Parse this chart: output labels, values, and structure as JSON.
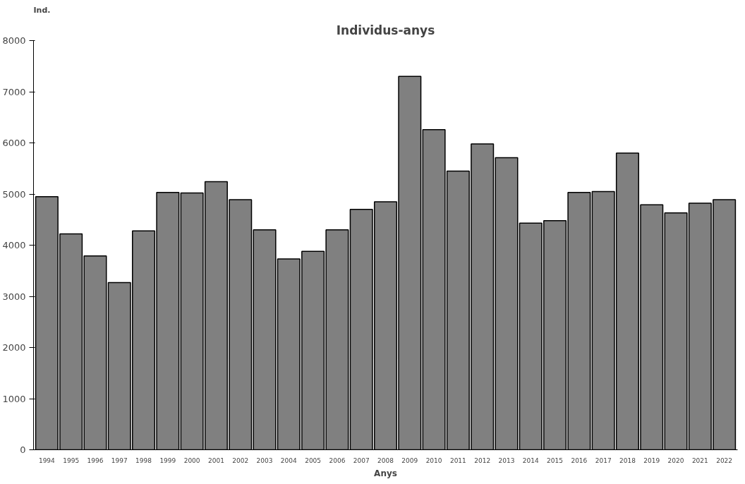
{
  "chart_data": {
    "type": "bar",
    "title": "Individus-anys",
    "xlabel": "Anys",
    "ylabel": "Ind.",
    "categories": [
      "1994",
      "1995",
      "1996",
      "1997",
      "1998",
      "1999",
      "2000",
      "2001",
      "2002",
      "2003",
      "2004",
      "2005",
      "2006",
      "2007",
      "2008",
      "2009",
      "2010",
      "2011",
      "2012",
      "2013",
      "2014",
      "2015",
      "2016",
      "2017",
      "2018",
      "2019",
      "2020",
      "2021",
      "2022"
    ],
    "values": [
      4950,
      4220,
      3790,
      3270,
      4280,
      5030,
      5020,
      5240,
      4890,
      4300,
      3730,
      3880,
      4300,
      4700,
      4850,
      7300,
      6260,
      5450,
      5980,
      5710,
      4430,
      4480,
      5030,
      5050,
      5800,
      4790,
      4630,
      4820,
      4890
    ],
    "color": "#808080",
    "ylim": [
      0,
      8000
    ],
    "yticks": [
      0,
      1000,
      2000,
      3000,
      4000,
      5000,
      6000,
      7000,
      8000
    ],
    "grid": false
  }
}
